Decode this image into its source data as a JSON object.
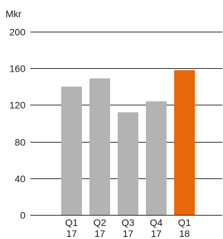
{
  "chart_data": {
    "type": "bar",
    "unit_label": "Mkr",
    "categories": [
      {
        "line1": "Q1",
        "line2": "17"
      },
      {
        "line1": "Q2",
        "line2": "17"
      },
      {
        "line1": "Q3",
        "line2": "17"
      },
      {
        "line1": "Q4",
        "line2": "17"
      },
      {
        "line1": "Q1",
        "line2": "18"
      }
    ],
    "values": [
      140,
      149,
      112,
      124,
      158
    ],
    "bar_colors": [
      "#b3b3b3",
      "#b3b3b3",
      "#b3b3b3",
      "#b3b3b3",
      "#e8670a"
    ],
    "ylim": [
      0,
      200
    ],
    "yticks": [
      0,
      40,
      80,
      120,
      160,
      200
    ],
    "grid": true
  }
}
